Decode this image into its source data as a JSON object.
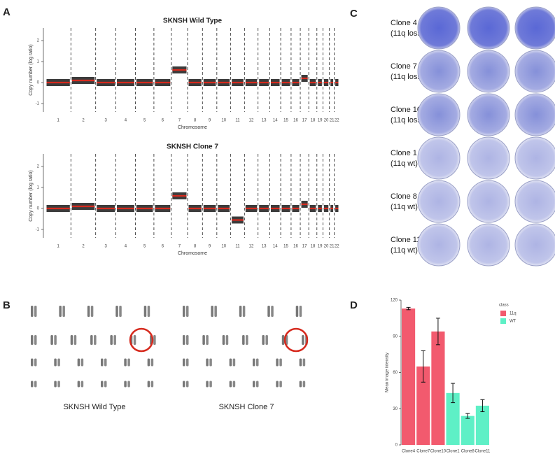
{
  "panel_a": {
    "letter": "A"
  },
  "panel_b": {
    "letter": "B",
    "labels": [
      "SKNSH Wild Type",
      "SKNSH Clone 7"
    ]
  },
  "panel_c": {
    "letter": "C",
    "rows": [
      {
        "clone": "Clone 4",
        "status": "(11q loss)"
      },
      {
        "clone": "Clone 7",
        "status": "(11q loss)"
      },
      {
        "clone": "Clone 10",
        "status": "(11q loss)"
      },
      {
        "clone": "Clone 1",
        "status": "(11q wt)"
      },
      {
        "clone": "Clone 8",
        "status": "(11q wt)"
      },
      {
        "clone": "Clone 11",
        "status": "(11q wt)"
      }
    ]
  },
  "panel_d": {
    "letter": "D"
  },
  "chart_data": [
    {
      "type": "segment",
      "title": "SKNSH Wild Type",
      "y_label": "Copy number (log ratio)",
      "x_label": "Chromosome",
      "categories": [
        "1",
        "2",
        "3",
        "4",
        "5",
        "6",
        "7",
        "8",
        "9",
        "10",
        "11",
        "12",
        "13",
        "14",
        "15",
        "16",
        "17",
        "18",
        "19",
        "20",
        "21",
        "22"
      ],
      "values": [
        0,
        0.1,
        0,
        0,
        0,
        0,
        0.6,
        0,
        0,
        0,
        0,
        0,
        0,
        0,
        0,
        0,
        0.2,
        0,
        0,
        0,
        0,
        0
      ],
      "color": "#d62a1e",
      "ylim": [
        -1.4,
        2.6
      ],
      "yticks": [
        -1,
        0,
        1,
        2
      ]
    },
    {
      "type": "segment",
      "title": "SKNSH Clone 7",
      "y_label": "Copy number (log ratio)",
      "x_label": "Chromosome",
      "categories": [
        "1",
        "2",
        "3",
        "4",
        "5",
        "6",
        "7",
        "8",
        "9",
        "10",
        "11",
        "12",
        "13",
        "14",
        "15",
        "16",
        "17",
        "18",
        "19",
        "20",
        "21",
        "22"
      ],
      "values": [
        0,
        0.1,
        0,
        0,
        0,
        0,
        0.6,
        0,
        0,
        0,
        -0.55,
        0,
        0,
        0,
        0,
        0,
        0.2,
        0,
        0,
        0,
        0,
        0
      ],
      "color": "#d62a1e",
      "ylim": [
        -1.4,
        2.6
      ],
      "yticks": [
        -1,
        0,
        1,
        2
      ]
    },
    {
      "type": "bar",
      "y_label": "Mean image intensity",
      "legend_title": "class",
      "categories": [
        "Clone4",
        "Clone7",
        "Clone10",
        "Clone1",
        "Clone8",
        "Clone11"
      ],
      "series": [
        {
          "name": "11q",
          "color": "#f25a6e",
          "values": [
            113,
            65,
            94,
            null,
            null,
            null
          ],
          "errors": [
            1,
            13,
            11,
            null,
            null,
            null
          ]
        },
        {
          "name": "WT",
          "color": "#5ef0c6",
          "values": [
            null,
            null,
            null,
            43,
            24,
            32.5
          ],
          "errors": [
            null,
            null,
            null,
            8,
            2,
            5
          ]
        }
      ],
      "ylim": [
        0,
        120
      ],
      "yticks": [
        0,
        30,
        60,
        90,
        120
      ]
    }
  ]
}
